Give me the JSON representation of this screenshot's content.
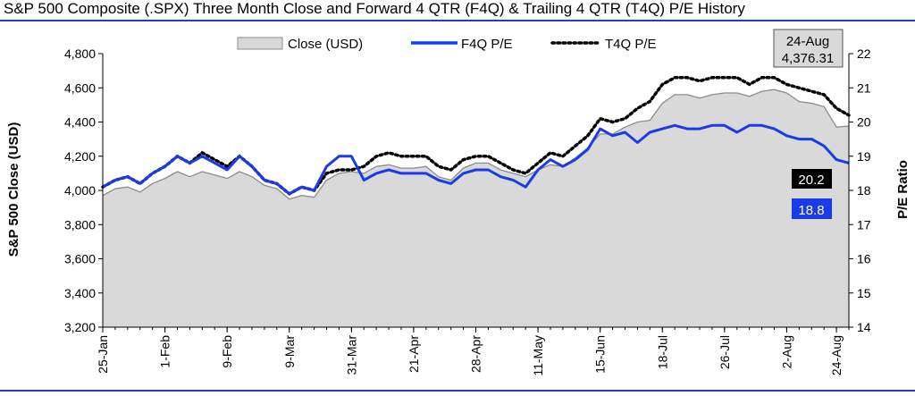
{
  "title": "S&P 500 Composite (.SPX) Three Month Close and Forward 4 QTR (F4Q) & Trailing 4 QTR (T4Q) P/E History",
  "colors": {
    "rule": "#1f3fbf",
    "area_fill": "#d9d9d9",
    "area_line": "#8c8c8c",
    "f4q": "#1a3ce8",
    "t4q": "#000000"
  },
  "chart_data": {
    "type": "area",
    "ylabel": "S&P 500 Close (USD)",
    "y2label": "P/E Ratio",
    "ylim": [
      3200,
      4800
    ],
    "y_ticks": [
      3200,
      3400,
      3600,
      3800,
      4000,
      4200,
      4400,
      4600,
      4800
    ],
    "y_tick_labels": [
      "3,200",
      "3,400",
      "3,600",
      "3,800",
      "4,000",
      "4,200",
      "4,400",
      "4,600",
      "4,800"
    ],
    "y2lim": [
      14,
      22
    ],
    "y2_ticks": [
      14,
      15,
      16,
      17,
      18,
      19,
      20,
      21,
      22
    ],
    "x_ticks": [
      {
        "i": 0,
        "label": "25-Jan"
      },
      {
        "i": 5,
        "label": "1-Feb"
      },
      {
        "i": 10,
        "label": "9-Feb"
      },
      {
        "i": 15,
        "label": "9-Mar"
      },
      {
        "i": 20,
        "label": "31-Mar"
      },
      {
        "i": 25,
        "label": "21-Apr"
      },
      {
        "i": 30,
        "label": "28-Apr"
      },
      {
        "i": 35,
        "label": "11-May"
      },
      {
        "i": 40,
        "label": "15-Jun"
      },
      {
        "i": 45,
        "label": "18-Jul"
      },
      {
        "i": 50,
        "label": "26-Jul"
      },
      {
        "i": 55,
        "label": "2-Aug"
      },
      {
        "i": 59,
        "label": "24-Aug"
      }
    ],
    "legend": [
      "Close (USD)",
      "F4Q P/E",
      "T4Q P/E"
    ],
    "series": [
      {
        "name": "Close (USD)",
        "axis": "left",
        "values": [
          3970,
          4010,
          4020,
          3990,
          4040,
          4070,
          4110,
          4080,
          4110,
          4090,
          4070,
          4110,
          4080,
          4030,
          4010,
          3950,
          3970,
          3960,
          4060,
          4100,
          4110,
          4100,
          4140,
          4150,
          4130,
          4130,
          4140,
          4080,
          4060,
          4130,
          4160,
          4160,
          4120,
          4100,
          4080,
          4120,
          4150,
          4140,
          4190,
          4250,
          4330,
          4330,
          4370,
          4400,
          4410,
          4510,
          4560,
          4560,
          4540,
          4560,
          4570,
          4570,
          4550,
          4580,
          4590,
          4570,
          4520,
          4510,
          4490,
          4370,
          4376.31
        ]
      },
      {
        "name": "F4Q P/E",
        "axis": "right",
        "values": [
          18.1,
          18.3,
          18.4,
          18.2,
          18.5,
          18.7,
          19.0,
          18.8,
          19.0,
          18.8,
          18.6,
          19.0,
          18.7,
          18.3,
          18.2,
          17.9,
          18.1,
          18.0,
          18.7,
          19.0,
          19.0,
          18.3,
          18.5,
          18.6,
          18.5,
          18.5,
          18.5,
          18.3,
          18.2,
          18.5,
          18.6,
          18.6,
          18.4,
          18.3,
          18.1,
          18.6,
          18.9,
          18.7,
          18.9,
          19.2,
          19.8,
          19.6,
          19.7,
          19.4,
          19.7,
          19.8,
          19.9,
          19.8,
          19.8,
          19.9,
          19.9,
          19.7,
          19.9,
          19.9,
          19.8,
          19.6,
          19.5,
          19.5,
          19.3,
          18.9,
          18.8
        ]
      },
      {
        "name": "T4Q P/E",
        "axis": "right",
        "values": [
          18.1,
          18.3,
          18.4,
          18.2,
          18.5,
          18.7,
          19.0,
          18.8,
          19.1,
          18.9,
          18.7,
          19.0,
          18.7,
          18.3,
          18.2,
          17.9,
          18.1,
          18.0,
          18.5,
          18.6,
          18.6,
          18.7,
          19.0,
          19.1,
          19.0,
          19.0,
          19.0,
          18.7,
          18.6,
          18.9,
          19.0,
          19.0,
          18.8,
          18.6,
          18.5,
          18.8,
          19.1,
          19.0,
          19.3,
          19.6,
          20.1,
          20.0,
          20.1,
          20.4,
          20.6,
          21.1,
          21.3,
          21.3,
          21.2,
          21.3,
          21.3,
          21.3,
          21.1,
          21.3,
          21.3,
          21.1,
          21.0,
          20.9,
          20.8,
          20.4,
          20.2
        ]
      }
    ],
    "callouts": {
      "last_date": "24-Aug",
      "last_close": "4,376.31",
      "t4q_last": "20.2",
      "f4q_last": "18.8"
    }
  }
}
